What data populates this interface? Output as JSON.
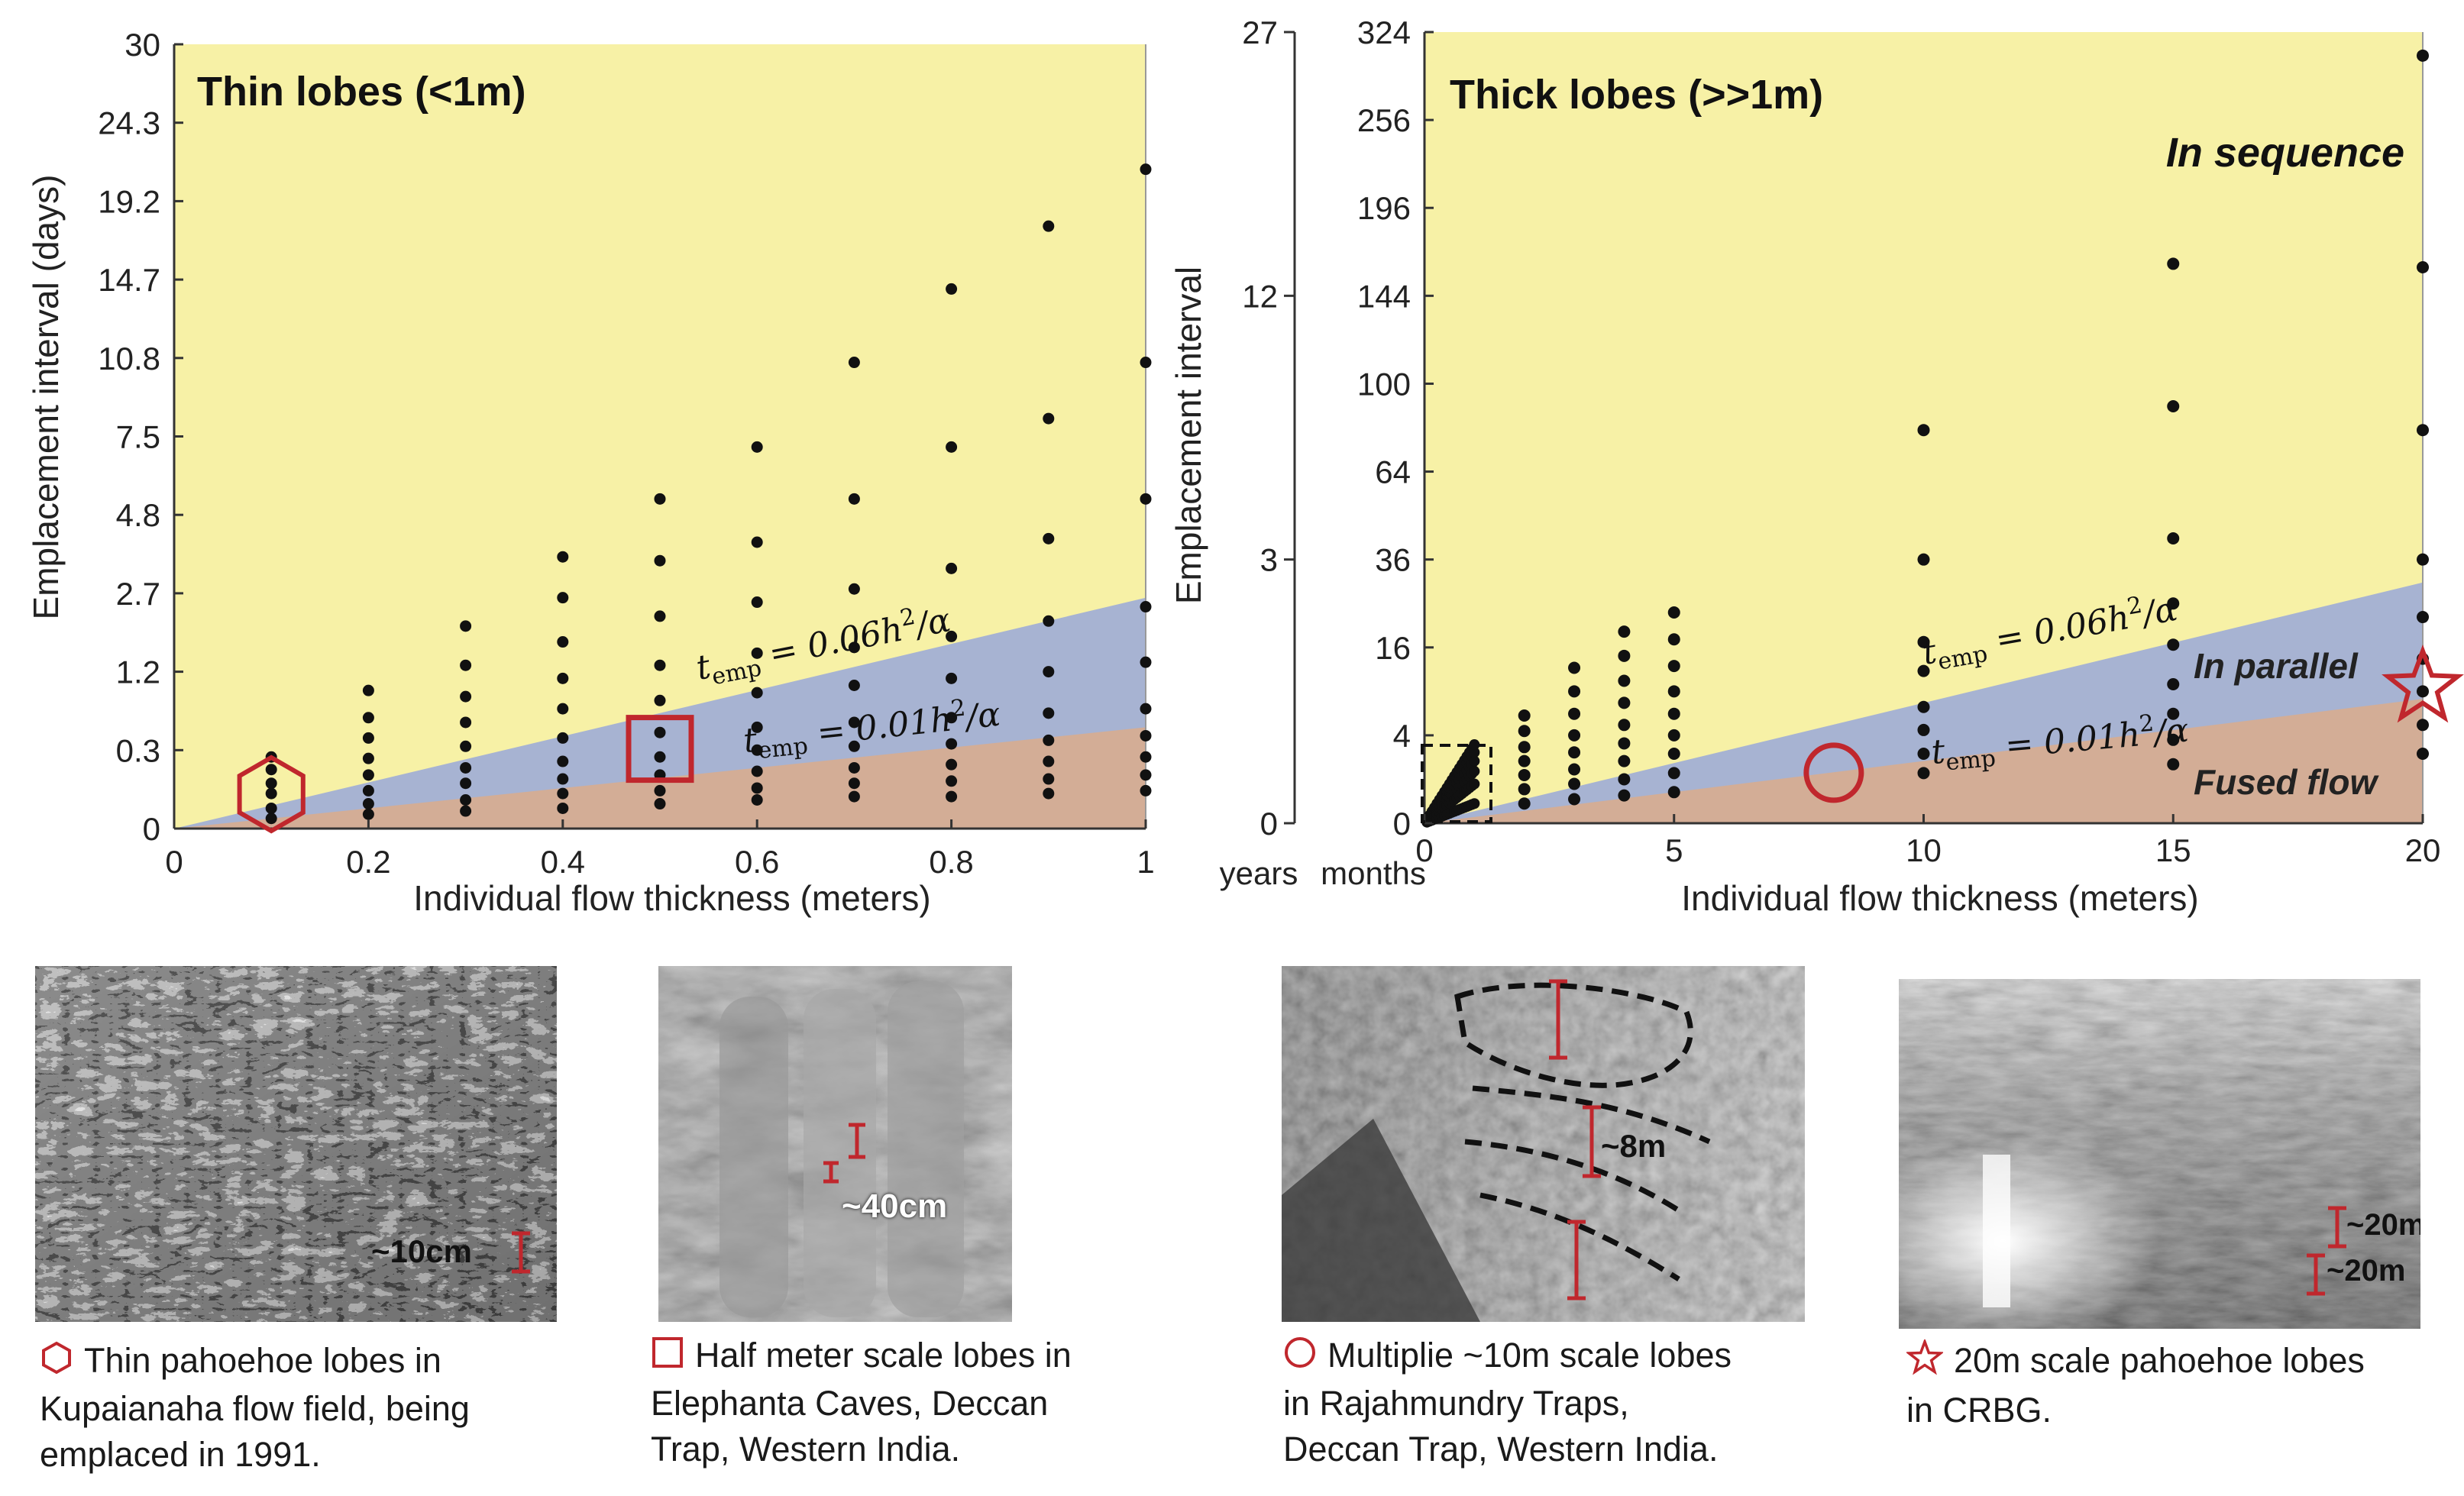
{
  "chart_data": [
    {
      "type": "scatter",
      "title": "Thin lobes (<1m)",
      "xlabel": "Individual flow thickness (meters)",
      "ylabel": "Emplacement interval (days)",
      "xlim": [
        0,
        1
      ],
      "ylim": [
        0,
        30
      ],
      "y_scale": "sqrt",
      "x_ticks": [
        0,
        0.2,
        0.4,
        0.6,
        0.8,
        1
      ],
      "x_tick_labels": [
        "0",
        "0.2",
        "0.4",
        "0.6",
        "0.8",
        "1"
      ],
      "y_ticks": [
        0,
        0.3,
        1.2,
        2.7,
        4.8,
        7.5,
        10.8,
        14.7,
        19.2,
        24.3,
        30
      ],
      "y_tick_labels": [
        "0",
        "0.3",
        "1.2",
        "2.7",
        "4.8",
        "7.5",
        "10.8",
        "14.7",
        "19.2",
        "24.3",
        "30"
      ],
      "regions": [
        {
          "name": "Fused flow",
          "color": "#d3ad96",
          "upper_coefficient": 0.01
        },
        {
          "name": "In parallel",
          "color": "#a7b3d2",
          "upper_coefficient": 0.06
        },
        {
          "name": "In sequence",
          "color": "#f7f1a6"
        }
      ],
      "boundary_labels": [
        "t_emp = 0.06h²/α",
        "t_emp = 0.01h²/α"
      ],
      "series": [
        {
          "x": 0.1,
          "y": [
            0.005,
            0.02,
            0.06,
            0.1,
            0.17,
            0.25
          ]
        },
        {
          "x": 0.2,
          "y": [
            0.01,
            0.03,
            0.07,
            0.14,
            0.24,
            0.4,
            0.6,
            0.93
          ]
        },
        {
          "x": 0.3,
          "y": [
            0.015,
            0.04,
            0.1,
            0.18,
            0.33,
            0.55,
            0.85,
            1.3,
            2.0
          ]
        },
        {
          "x": 0.4,
          "y": [
            0.02,
            0.06,
            0.12,
            0.22,
            0.4,
            0.7,
            1.1,
            1.7,
            2.6,
            3.6
          ]
        },
        {
          "x": 0.5,
          "y": [
            0.03,
            0.07,
            0.14,
            0.25,
            0.45,
            0.8,
            1.3,
            2.2,
            3.5,
            5.3
          ]
        },
        {
          "x": 0.6,
          "y": [
            0.04,
            0.08,
            0.16,
            0.3,
            0.5,
            0.9,
            1.5,
            2.5,
            4.0,
            7.1
          ]
        },
        {
          "x": 0.7,
          "y": [
            0.05,
            0.1,
            0.18,
            0.33,
            0.55,
            1.0,
            1.6,
            2.8,
            5.3,
            10.6
          ]
        },
        {
          "x": 0.8,
          "y": [
            0.05,
            0.11,
            0.2,
            0.35,
            0.6,
            1.1,
            1.8,
            3.3,
            7.1,
            14.2
          ]
        },
        {
          "x": 0.9,
          "y": [
            0.06,
            0.12,
            0.22,
            0.38,
            0.65,
            1.2,
            2.1,
            4.1,
            8.2,
            17.7
          ]
        },
        {
          "x": 1.0,
          "y": [
            0.07,
            0.14,
            0.25,
            0.42,
            0.7,
            1.35,
            2.4,
            5.3,
            10.6,
            21.2
          ]
        }
      ],
      "marker": {
        "shape": "hexagon",
        "x": 0.1,
        "y": 0.12,
        "color": "#c0272d"
      },
      "marker2": {
        "shape": "square",
        "x": 0.5,
        "y": 0.31,
        "color": "#c0272d"
      }
    },
    {
      "type": "scatter",
      "title": "Thick lobes (>>1m)",
      "xlabel": "Individual flow thickness (meters)",
      "ylabel": "Emplacement interval",
      "xlim": [
        0,
        20
      ],
      "ylim_months": [
        0,
        324
      ],
      "y_scale": "sqrt",
      "left_axis_unit": "years",
      "right_axis_unit": "months",
      "x_ticks": [
        0,
        5,
        10,
        15,
        20
      ],
      "x_tick_labels": [
        "0",
        "5",
        "10",
        "15",
        "20"
      ],
      "y_ticks_months": [
        0,
        4,
        16,
        36,
        64,
        100,
        144,
        196,
        256,
        324
      ],
      "y_tick_labels_months": [
        "0",
        "4",
        "16",
        "36",
        "64",
        "100",
        "144",
        "196",
        "256",
        "324"
      ],
      "y_ticks_years": [
        0,
        3,
        12,
        27
      ],
      "y_tick_labels_years": [
        "0",
        "3",
        "12",
        "27"
      ],
      "regions": [
        {
          "name": "Fused flow",
          "color": "#d3ad96"
        },
        {
          "name": "In parallel",
          "color": "#a7b3d2"
        },
        {
          "name": "In sequence",
          "color": "#f7f1a6"
        }
      ],
      "boundary_labels": [
        "t_emp = 0.06h²/α",
        "t_emp = 0.01h²/α"
      ],
      "series": [
        {
          "x": 2,
          "y": [
            0.2,
            0.6,
            1.2,
            2.0,
            3.0,
            4.4,
            6.0
          ]
        },
        {
          "x": 3,
          "y": [
            0.3,
            0.8,
            1.5,
            2.6,
            4.0,
            6.2,
            9.0,
            12.5
          ]
        },
        {
          "x": 4,
          "y": [
            0.4,
            1.0,
            2.0,
            3.3,
            5.0,
            7.5,
            10.5,
            14.5,
            19.0
          ]
        },
        {
          "x": 5,
          "y": [
            0.5,
            1.3,
            2.5,
            4.0,
            6.2,
            9.0,
            12.8,
            17.5,
            23.0
          ]
        },
        {
          "x": 10,
          "y": [
            1.3,
            2.5,
            4.5,
            7.0,
            12.0,
            17.0,
            36.0,
            80.0
          ]
        },
        {
          "x": 15,
          "y": [
            1.8,
            3.6,
            6.2,
            10.0,
            16.5,
            25.0,
            42.0,
            90.0,
            162.0
          ]
        },
        {
          "x": 20,
          "y": [
            2.5,
            5.0,
            9.0,
            14.0,
            22.0,
            36.0,
            80.0,
            160.0,
            305.0
          ]
        }
      ],
      "marker": {
        "shape": "circle",
        "x": 8.2,
        "y": 3.4,
        "color": "#c0272d"
      },
      "marker2": {
        "shape": "star",
        "x": 20,
        "y": 9.5,
        "color": "#c0272d"
      }
    }
  ],
  "photos": [
    {
      "label": "~10cm",
      "caption": [
        "Thin pahoehoe lobes in",
        "Kupaianaha flow field, being",
        "emplaced in 1991."
      ],
      "symbol": "hexagon-icon"
    },
    {
      "label": "~40cm",
      "caption": [
        "Half meter scale lobes in",
        "Elephanta Caves, Deccan",
        "Trap, Western India."
      ],
      "symbol": "square-icon"
    },
    {
      "label": "~8m",
      "caption": [
        "Multiplie ~10m scale lobes",
        "in Rajahmundry Traps,",
        "Deccan Trap, Western India."
      ],
      "symbol": "circle-icon"
    },
    {
      "labels": [
        "~20m",
        "~20m"
      ],
      "caption": [
        "20m scale pahoehoe lobes",
        "in CRBG."
      ],
      "symbol": "star-icon"
    }
  ],
  "colors": {
    "accent_red": "#c0272d",
    "sequence": "#f7f1a6",
    "parallel": "#a7b3d2",
    "fused": "#d3ad96"
  }
}
